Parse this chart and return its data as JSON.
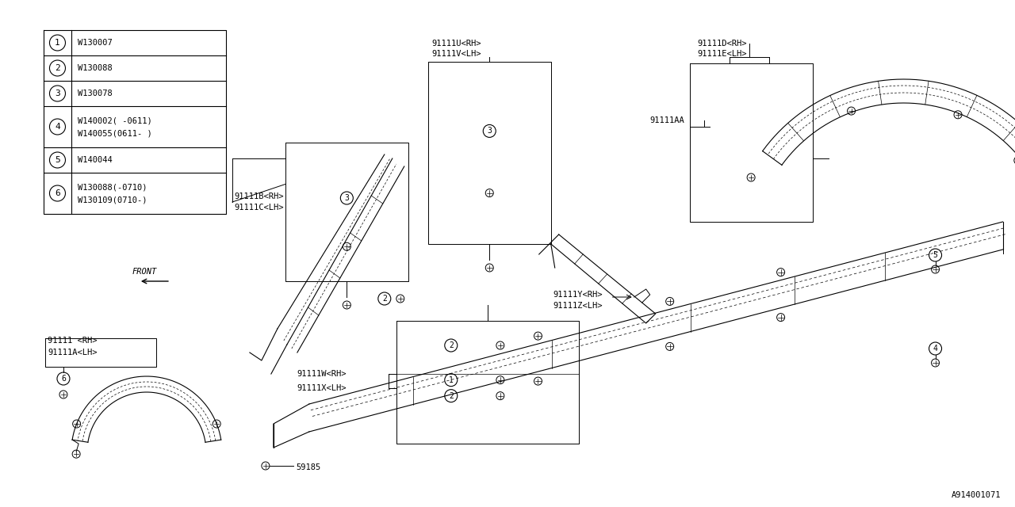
{
  "bg_color": "#ffffff",
  "line_color": "#000000",
  "font_color": "#000000",
  "diagram_id": "A914001071",
  "legend_items": [
    {
      "num": "1",
      "code": "W130007"
    },
    {
      "num": "2",
      "code": "W130088"
    },
    {
      "num": "3",
      "code": "W130078"
    },
    {
      "num": "4",
      "code": "W140002（-0611）\nW140055（0611-）"
    },
    {
      "num": "5",
      "code": "W140044"
    },
    {
      "num": "6",
      "code": "W130088（-0710）\nW130109（0710-）"
    }
  ],
  "legend_items_ascii": [
    {
      "num": "1",
      "code": "W130007"
    },
    {
      "num": "2",
      "code": "W130088"
    },
    {
      "num": "3",
      "code": "W130078"
    },
    {
      "num": "4",
      "code": "W140002( -0611)\nW140055(0611- )"
    },
    {
      "num": "5",
      "code": "W140044"
    },
    {
      "num": "6",
      "code": "W130088(-0710)\nW130109(0710-)"
    }
  ]
}
